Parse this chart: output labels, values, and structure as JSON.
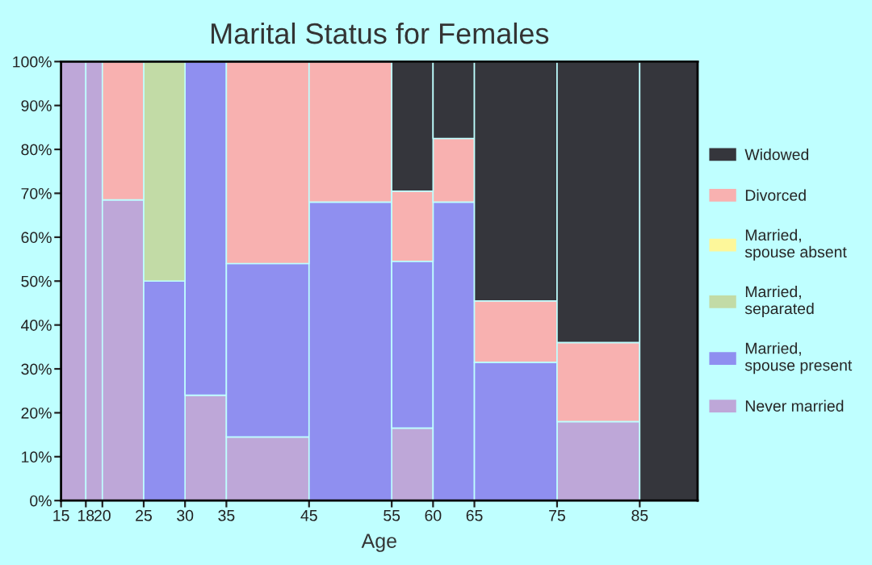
{
  "chart_data": {
    "type": "bar",
    "stacked": true,
    "title": "Marital Status for Females",
    "xlabel": "Age",
    "x": [
      16.5,
      19,
      22.5,
      27.5,
      32.5,
      40,
      50,
      57.5,
      62.5,
      70,
      80,
      88.5
    ],
    "xlim": [
      15,
      92
    ],
    "xticks": [
      15,
      18,
      20,
      25,
      30,
      35,
      45,
      55,
      60,
      65,
      75,
      85
    ],
    "ylim": [
      0,
      100
    ],
    "yticks": [
      {
        "value": 0,
        "label": "0%"
      },
      {
        "value": 10,
        "label": "10%"
      },
      {
        "value": 20,
        "label": "20%"
      },
      {
        "value": 30,
        "label": "30%"
      },
      {
        "value": 40,
        "label": "40%"
      },
      {
        "value": 50,
        "label": "50%"
      },
      {
        "value": 60,
        "label": "60%"
      },
      {
        "value": 70,
        "label": "70%"
      },
      {
        "value": 80,
        "label": "80%"
      },
      {
        "value": 90,
        "label": "90%"
      },
      {
        "value": 100,
        "label": "100%"
      }
    ],
    "legend": "right",
    "series": [
      {
        "name": "Never married",
        "color": "#bea7d8",
        "values": [
          100,
          100,
          68.5,
          null,
          24,
          14.5,
          null,
          16.5,
          null,
          null,
          18,
          null
        ]
      },
      {
        "name": "Married, spouse present",
        "color": "#8f8ff0",
        "values": [
          null,
          null,
          null,
          50,
          76,
          39.5,
          68,
          38,
          68,
          31.5,
          null,
          null
        ]
      },
      {
        "name": "Married, separated",
        "color": "#c2dba6",
        "values": [
          null,
          null,
          null,
          50,
          null,
          null,
          null,
          null,
          null,
          null,
          null,
          null
        ]
      },
      {
        "name": "Married, spouse absent",
        "color": "#fdf79a",
        "values": [
          null,
          null,
          null,
          null,
          null,
          null,
          null,
          null,
          null,
          null,
          null,
          null
        ]
      },
      {
        "name": "Divorced",
        "color": "#f8b1b0",
        "values": [
          null,
          null,
          31.5,
          null,
          null,
          46,
          32,
          16,
          14.5,
          14,
          18,
          null
        ]
      },
      {
        "name": "Widowed",
        "color": "#35363c",
        "values": [
          null,
          null,
          null,
          null,
          null,
          null,
          null,
          29.5,
          17.5,
          54.5,
          64,
          100
        ]
      }
    ]
  }
}
